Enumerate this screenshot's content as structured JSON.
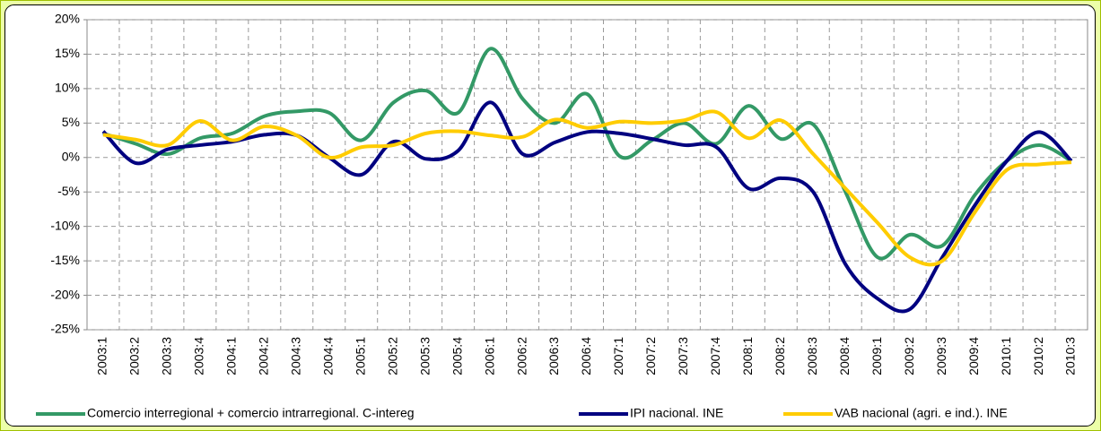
{
  "chart_data": {
    "type": "line",
    "categories": [
      "2003:1",
      "2003:2",
      "2003:3",
      "2003:4",
      "2004:1",
      "2004:2",
      "2004:3",
      "2004:4",
      "2005:1",
      "2005:2",
      "2005:3",
      "2005:4",
      "2006:1",
      "2006:2",
      "2006:3",
      "2006:4",
      "2007:1",
      "2007:2",
      "2007:3",
      "2007:4",
      "2008:1",
      "2008:2",
      "2008:3",
      "2008:4",
      "2009:1",
      "2009:2",
      "2009:3",
      "2009:4",
      "2010:1",
      "2010:2",
      "2010:3"
    ],
    "series": [
      {
        "name": "Comercio interregional + comercio intrarregional. C-intereg",
        "color": "#339966",
        "values": [
          3.5,
          2,
          0.5,
          2.8,
          3.5,
          6,
          6.7,
          6.5,
          2.5,
          8,
          9.7,
          6.5,
          15.8,
          8.5,
          5,
          9.2,
          0.2,
          2.5,
          5,
          2,
          7.5,
          2.7,
          4.8,
          -5,
          -14.5,
          -11.2,
          -12.8,
          -5.5,
          -0.5,
          1.8,
          -0.5
        ]
      },
      {
        "name": "IPI nacional. INE",
        "color": "#000080",
        "values": [
          3.8,
          -0.8,
          1.2,
          1.8,
          2.3,
          3.3,
          3.2,
          0,
          -2.5,
          2.3,
          -0.2,
          1,
          8,
          0.5,
          2.2,
          3.7,
          3.5,
          2.7,
          1.8,
          1.5,
          -4.5,
          -3,
          -5,
          -15.5,
          -20.5,
          -22,
          -14.5,
          -7,
          -0.5,
          3.7,
          -0.5
        ]
      },
      {
        "name": "VAB nacional (agri. e ind.). INE",
        "color": "#ffcc00",
        "values": [
          3.3,
          2.6,
          1.8,
          5.3,
          2.5,
          4.5,
          3.2,
          0,
          1.5,
          1.8,
          3.5,
          3.8,
          3.2,
          3,
          5.5,
          4.3,
          5.2,
          5,
          5.4,
          6.6,
          2.8,
          5.4,
          0.5,
          -4.5,
          -9.5,
          -14.5,
          -15,
          -8,
          -1.8,
          -1,
          -0.7
        ]
      }
    ],
    "ylim": [
      -25,
      20
    ],
    "yticks": [
      {
        "value": -25,
        "label": "-25%"
      },
      {
        "value": -20,
        "label": "-20%"
      },
      {
        "value": -15,
        "label": "-15%"
      },
      {
        "value": -10,
        "label": "-10%"
      },
      {
        "value": -5,
        "label": "-5%"
      },
      {
        "value": 0,
        "label": "0%"
      },
      {
        "value": 5,
        "label": "5%"
      },
      {
        "value": 10,
        "label": "10%"
      },
      {
        "value": 15,
        "label": "15%"
      },
      {
        "value": 20,
        "label": "20%"
      }
    ],
    "grid": true,
    "legend": "bottom"
  }
}
